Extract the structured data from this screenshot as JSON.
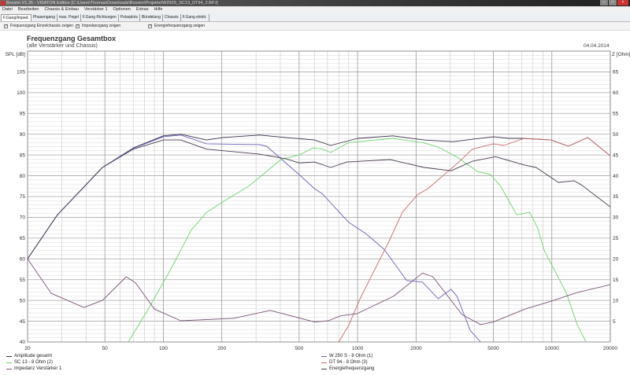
{
  "window": {
    "title": "Boxsim V1.26 - VISATON Edition [C:\\Users\\Thomas\\Downloads\\Boxsim\\Projekte\\W250S_SC13_DT94_2.BPJ]"
  },
  "menu": [
    "Datei",
    "Bearbeiten",
    "Chassis & Einbau",
    "Verstärker 1",
    "Optionen",
    "Extras",
    "Hilfe"
  ],
  "tabs": [
    "F.Gang/Imped.",
    "Phasengang",
    "max. Pegel",
    "F.Gang Richtungen",
    "Polarplots",
    "Bündelung",
    "Chassis",
    "F.Gang elektr."
  ],
  "active_tab": 0,
  "checkboxes": [
    {
      "label": "Frequenzgang Einzelchassis zeigen",
      "checked": true
    },
    {
      "label": "Impedanzgang zeigen",
      "checked": true
    },
    {
      "label": "Energiefrequenzgang zeigen",
      "checked": true
    }
  ],
  "chart_data": {
    "type": "line",
    "title": "Frequenzgang Gesamtbox",
    "subtitle": "(alle Verstärker und Chassis)",
    "date": "04.04.2014",
    "ylabel": "SPL [dB]",
    "y2label": "Z [Ohm]",
    "xscale": "log",
    "xlim": [
      20,
      20000
    ],
    "ylim": [
      40,
      110
    ],
    "y2lim": [
      0,
      70
    ],
    "xticks": [
      20,
      50,
      100,
      200,
      500,
      1000,
      2000,
      5000,
      10000,
      20000
    ],
    "yticks": [
      40,
      45,
      50,
      55,
      60,
      65,
      70,
      75,
      80,
      85,
      90,
      95,
      100,
      105
    ],
    "y2ticks": [
      0,
      5,
      10,
      15,
      20,
      25,
      30,
      35,
      40,
      45,
      50,
      55,
      60,
      65
    ],
    "grid": true,
    "legend_position": "bottom",
    "series": [
      {
        "name": "Amplitude gesamt",
        "axis": "left",
        "color": "#3a3048",
        "points": [
          [
            20,
            60
          ],
          [
            28.5,
            70.6
          ],
          [
            48.6,
            82
          ],
          [
            70,
            86.7
          ],
          [
            100,
            89.6
          ],
          [
            123,
            90
          ],
          [
            167,
            88.6
          ],
          [
            202,
            89.2
          ],
          [
            313,
            89.8
          ],
          [
            427,
            89.2
          ],
          [
            600,
            88.6
          ],
          [
            727,
            87.3
          ],
          [
            1000,
            89
          ],
          [
            1520,
            89.6
          ],
          [
            2200,
            88.6
          ],
          [
            3100,
            88.2
          ],
          [
            5000,
            89.4
          ],
          [
            6000,
            89
          ],
          [
            7000,
            89
          ],
          [
            9900,
            88.6
          ],
          [
            12160,
            87.1
          ],
          [
            15300,
            89.2
          ],
          [
            20000,
            84.8
          ]
        ]
      },
      {
        "name": "W 250 S - 8 Ohm (1)",
        "axis": "left",
        "color": "#6a62b8",
        "points": [
          [
            20,
            60
          ],
          [
            28.5,
            70.6
          ],
          [
            48.6,
            82
          ],
          [
            70,
            86.6
          ],
          [
            100,
            89.4
          ],
          [
            123,
            89.8
          ],
          [
            167,
            87.7
          ],
          [
            313,
            87.5
          ],
          [
            340,
            87.1
          ],
          [
            500,
            80.3
          ],
          [
            600,
            76.9
          ],
          [
            660,
            75.6
          ],
          [
            900,
            68.8
          ],
          [
            1100,
            66.1
          ],
          [
            1370,
            62.3
          ],
          [
            1790,
            54.8
          ],
          [
            2160,
            54.4
          ],
          [
            2600,
            50.4
          ],
          [
            3030,
            52.7
          ],
          [
            3250,
            51
          ],
          [
            3800,
            42.8
          ],
          [
            4300,
            39.6
          ]
        ]
      },
      {
        "name": "SC 13 - 8 Ohm (2)",
        "axis": "left",
        "color": "#6fd46f",
        "points": [
          [
            66,
            39.8
          ],
          [
            85,
            48.5
          ],
          [
            109,
            57.4
          ],
          [
            139,
            66.9
          ],
          [
            167,
            71.2
          ],
          [
            202,
            73.7
          ],
          [
            275,
            77.5
          ],
          [
            333,
            80.7
          ],
          [
            403,
            83.9
          ],
          [
            500,
            85
          ],
          [
            590,
            86.7
          ],
          [
            660,
            86.4
          ],
          [
            727,
            85.6
          ],
          [
            900,
            88
          ],
          [
            1520,
            89
          ],
          [
            2200,
            87.9
          ],
          [
            2600,
            86.9
          ],
          [
            3250,
            84.5
          ],
          [
            4150,
            81
          ],
          [
            4840,
            80.3
          ],
          [
            5450,
            77.5
          ],
          [
            6600,
            70.6
          ],
          [
            7700,
            71.2
          ],
          [
            8450,
            67.4
          ],
          [
            9200,
            61.7
          ],
          [
            10500,
            56.6
          ],
          [
            11900,
            51.7
          ],
          [
            13500,
            44.2
          ],
          [
            15000,
            39.6
          ]
        ]
      },
      {
        "name": "DT 94 - 8 Ohm (3)",
        "axis": "left",
        "color": "#c86a6a",
        "points": [
          [
            800,
            39.8
          ],
          [
            900,
            44
          ],
          [
            1030,
            50.4
          ],
          [
            1200,
            56.6
          ],
          [
            1450,
            64.2
          ],
          [
            1700,
            71.2
          ],
          [
            2030,
            75.4
          ],
          [
            2300,
            76.9
          ],
          [
            2700,
            79.7
          ],
          [
            3250,
            82.9
          ],
          [
            3900,
            86.4
          ],
          [
            5000,
            87.7
          ],
          [
            5650,
            87.3
          ],
          [
            7200,
            89
          ],
          [
            9900,
            88.6
          ],
          [
            12160,
            87.1
          ],
          [
            15300,
            89.2
          ],
          [
            20000,
            84.8
          ]
        ]
      },
      {
        "name": "Impedanz Verstärker 1",
        "axis": "right",
        "color": "#7a5478",
        "points": [
          [
            20,
            20
          ],
          [
            26.5,
            11.7
          ],
          [
            39,
            8.3
          ],
          [
            48.6,
            10
          ],
          [
            64.5,
            15.7
          ],
          [
            72,
            14.2
          ],
          [
            90,
            7.9
          ],
          [
            123,
            5.1
          ],
          [
            230,
            5.7
          ],
          [
            355,
            7.6
          ],
          [
            600,
            4.8
          ],
          [
            706,
            5.1
          ],
          [
            820,
            6.3
          ],
          [
            990,
            6.8
          ],
          [
            1530,
            11
          ],
          [
            2160,
            16.6
          ],
          [
            2440,
            15.7
          ],
          [
            3450,
            6.6
          ],
          [
            4300,
            4.2
          ],
          [
            5000,
            4.8
          ],
          [
            7260,
            7.9
          ],
          [
            9900,
            9.8
          ],
          [
            13500,
            11.9
          ],
          [
            20000,
            13.8
          ]
        ]
      },
      {
        "name": "Energiefrequenzgang",
        "axis": "left",
        "color": "#4a3a50",
        "points": [
          [
            20,
            60
          ],
          [
            28.5,
            70.6
          ],
          [
            48.6,
            82
          ],
          [
            70,
            86.4
          ],
          [
            100,
            88.6
          ],
          [
            123,
            88.6
          ],
          [
            167,
            86.4
          ],
          [
            313,
            85.2
          ],
          [
            427,
            84.1
          ],
          [
            500,
            83.1
          ],
          [
            600,
            83.3
          ],
          [
            727,
            82
          ],
          [
            880,
            83.3
          ],
          [
            1470,
            83.9
          ],
          [
            2200,
            82
          ],
          [
            3030,
            81.2
          ],
          [
            3900,
            83.5
          ],
          [
            5130,
            84.6
          ],
          [
            7200,
            82.6
          ],
          [
            8300,
            82
          ],
          [
            10800,
            78.4
          ],
          [
            13000,
            78.8
          ],
          [
            14200,
            77.8
          ],
          [
            20000,
            72.5
          ]
        ]
      }
    ]
  }
}
